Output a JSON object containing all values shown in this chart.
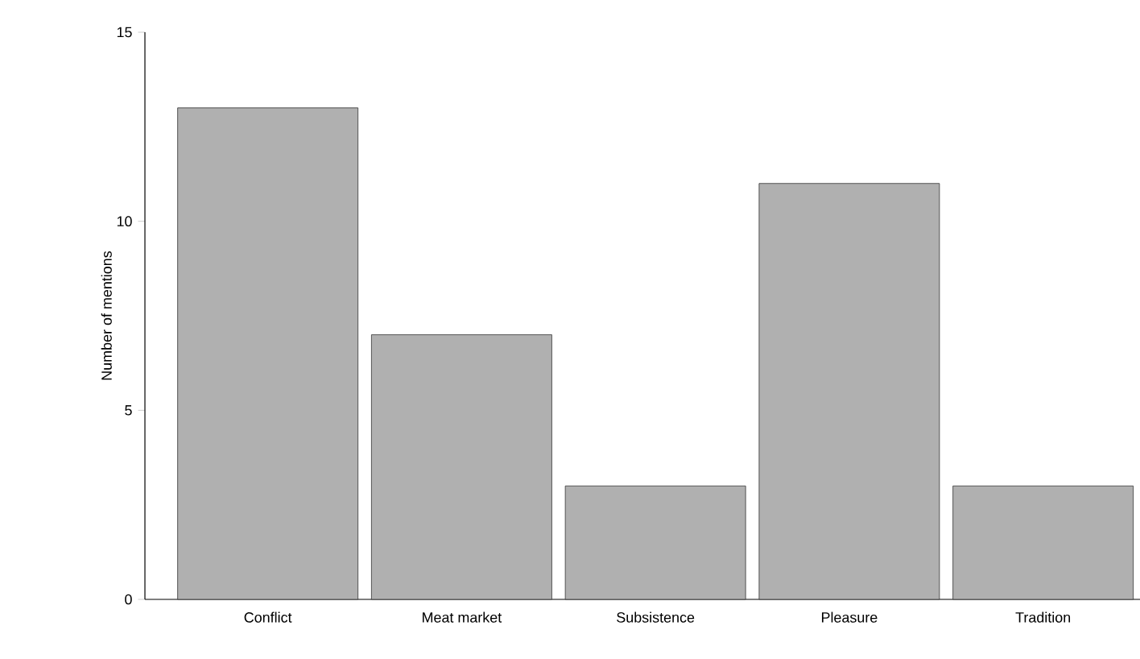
{
  "chart_data": {
    "type": "bar",
    "ylabel": "Number of mentions",
    "categories": [
      "Conflict",
      "Meat market",
      "Subsistence",
      "Pleasure",
      "Tradition"
    ],
    "values": [
      13,
      7,
      3,
      11,
      3
    ],
    "color": "#b0b0b0",
    "ylim": [
      0,
      15
    ],
    "yticks": [
      0,
      5,
      10,
      15
    ]
  }
}
